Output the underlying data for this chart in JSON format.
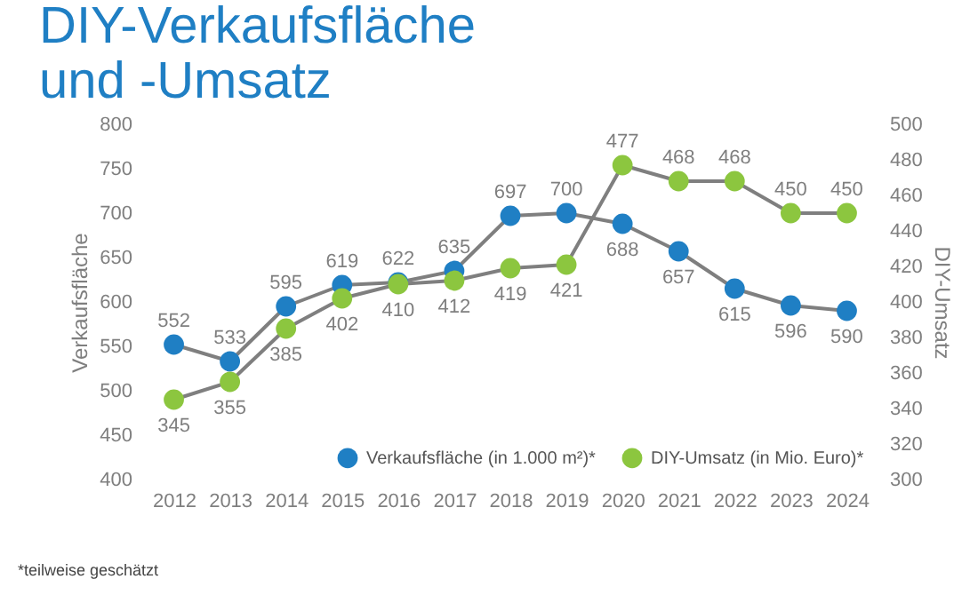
{
  "chart_data": {
    "type": "line",
    "title": "DIY-Verkaufsfläche und -Umsatz",
    "categories": [
      "2012",
      "2013",
      "2014",
      "2015",
      "2016",
      "2017",
      "2018",
      "2019",
      "2020",
      "2021",
      "2022",
      "2023",
      "2024"
    ],
    "series": [
      {
        "name": "Verkaufsfläche (in 1.000 m²)*",
        "color": "#1f7fc4",
        "values": [
          552,
          533,
          595,
          619,
          622,
          635,
          697,
          700,
          688,
          657,
          615,
          596,
          590
        ]
      },
      {
        "name": "DIY-Umsatz (in Mio. Euro)*",
        "color": "#8cc63f",
        "axis": "y2",
        "values": [
          345,
          355,
          385,
          402,
          410,
          412,
          419,
          421,
          477,
          468,
          468,
          450,
          450
        ]
      }
    ],
    "ylabel": "Verkaufsfläche",
    "y2label": "DIY-Umsatz",
    "ylim": [
      400,
      800
    ],
    "yticks": [
      400,
      450,
      500,
      550,
      600,
      650,
      700,
      750,
      800
    ],
    "y2lim": [
      300,
      500
    ],
    "y2ticks": [
      300,
      320,
      340,
      360,
      380,
      400,
      420,
      440,
      460,
      480,
      500
    ],
    "data_labels": true,
    "legend": "bottom right",
    "marker": "circle",
    "grid": false,
    "annotations": [
      "*teilweise geschätzt"
    ]
  }
}
